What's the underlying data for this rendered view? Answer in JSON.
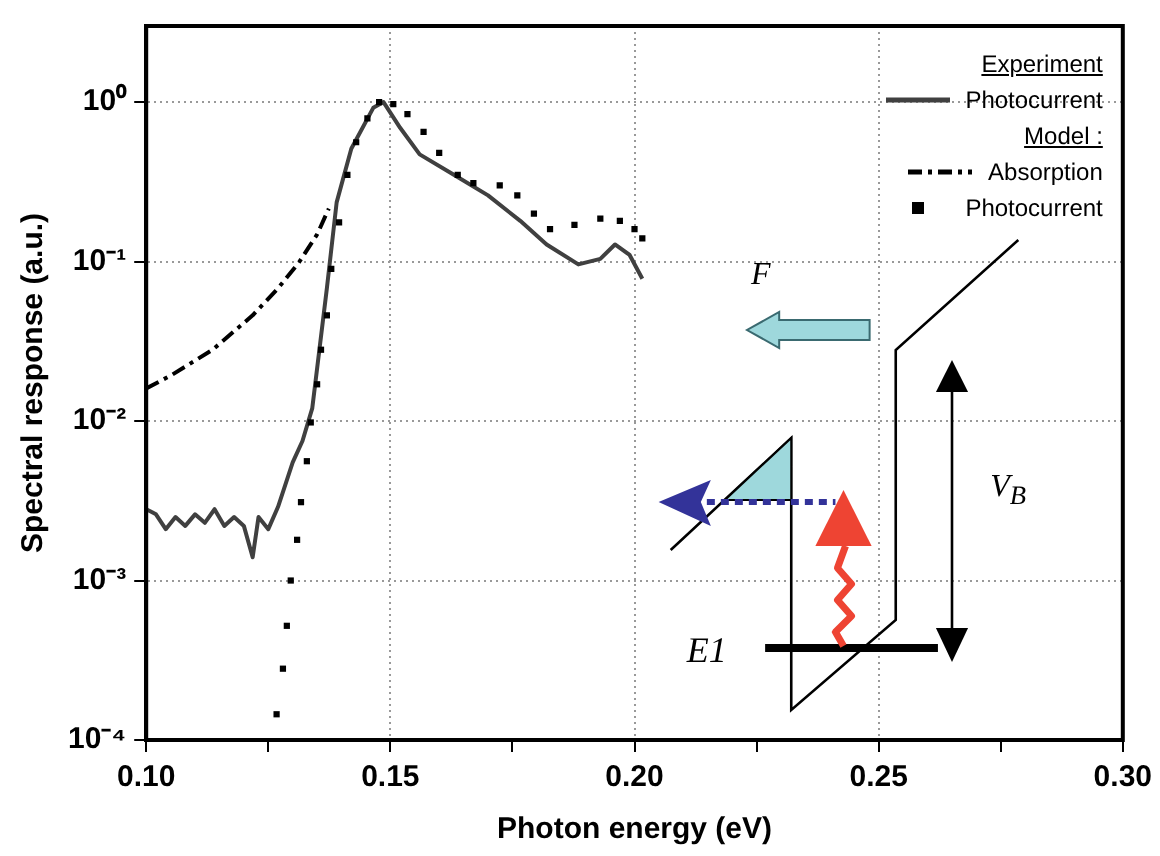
{
  "chart_data": {
    "type": "line",
    "xlabel": "Photon energy (eV)",
    "ylabel": "Spectral response (a.u.)",
    "xlim": [
      0.1,
      0.3
    ],
    "xticks": [
      {
        "value": 0.1,
        "label": "0.10"
      },
      {
        "value": 0.125,
        "label": null
      },
      {
        "value": 0.15,
        "label": "0.15"
      },
      {
        "value": 0.175,
        "label": null
      },
      {
        "value": 0.2,
        "label": "0.20"
      },
      {
        "value": 0.225,
        "label": null
      },
      {
        "value": 0.25,
        "label": "0.25"
      },
      {
        "value": 0.275,
        "label": null
      },
      {
        "value": 0.3,
        "label": "0.30"
      }
    ],
    "ylim": [
      0.0001,
      3
    ],
    "yticks": [
      {
        "value": 0.0001,
        "label": "10⁻⁴"
      },
      {
        "value": 0.001,
        "label": "10⁻³"
      },
      {
        "value": 0.01,
        "label": "10⁻²"
      },
      {
        "value": 0.1,
        "label": "10⁻¹"
      },
      {
        "value": 1,
        "label": "10⁰"
      }
    ],
    "log": "y",
    "grid": true,
    "legend": "top right",
    "annotations": [
      "Experiment",
      "Model :",
      "F",
      "V$_{B}$",
      "E1"
    ],
    "series": [
      {
        "name": "Photocurrent",
        "type": "line",
        "color": "#404040",
        "marker": "none",
        "line_style": "solid",
        "x": [
          0.1,
          0.102,
          0.104,
          0.106,
          0.108,
          0.11,
          0.112,
          0.114,
          0.116,
          0.118,
          0.12,
          0.1218,
          0.123,
          0.125,
          0.127,
          0.13,
          0.132,
          0.134,
          0.137,
          0.139,
          0.142,
          0.1465,
          0.1486,
          0.152,
          0.156,
          0.163,
          0.17,
          0.1766,
          0.182,
          0.1885,
          0.193,
          0.196,
          0.199,
          0.2016
        ],
        "values": [
          0.0028,
          0.0026,
          0.0021,
          0.0025,
          0.0022,
          0.0026,
          0.0023,
          0.0028,
          0.0022,
          0.0025,
          0.0022,
          0.0014,
          0.0025,
          0.0021,
          0.0029,
          0.0055,
          0.0075,
          0.012,
          0.068,
          0.235,
          0.51,
          0.92,
          1.0,
          0.69,
          0.47,
          0.35,
          0.26,
          0.18,
          0.128,
          0.096,
          0.104,
          0.128,
          0.11,
          0.078
        ]
      },
      {
        "name": "Absorption",
        "type": "line",
        "color": "#000000",
        "marker": "none",
        "line_style": "dashed",
        "x": [
          0.1,
          0.1053,
          0.1136,
          0.1218,
          0.127,
          0.1313,
          0.135,
          0.1374
        ],
        "values": [
          0.016,
          0.0195,
          0.028,
          0.046,
          0.068,
          0.099,
          0.148,
          0.215
        ]
      },
      {
        "name": "Photocurrent",
        "type": "scatter",
        "color": "#000000",
        "marker": "square",
        "x": [
          0.1267,
          0.128,
          0.1288,
          0.1296,
          0.1309,
          0.1317,
          0.1329,
          0.1337,
          0.135,
          0.1358,
          0.137,
          0.1379,
          0.1395,
          0.1412,
          0.143,
          0.1453,
          0.1477,
          0.1506,
          0.1535,
          0.1568,
          0.16,
          0.1638,
          0.167,
          0.1724,
          0.176,
          0.1794,
          0.1827,
          0.1877,
          0.193,
          0.197,
          0.2,
          0.2016
        ],
        "values": [
          0.000145,
          0.00028,
          0.00052,
          0.001,
          0.0018,
          0.0031,
          0.0056,
          0.0098,
          0.017,
          0.028,
          0.046,
          0.09,
          0.176,
          0.35,
          0.56,
          0.79,
          1.0,
          0.97,
          0.84,
          0.65,
          0.48,
          0.35,
          0.31,
          0.3,
          0.26,
          0.2,
          0.16,
          0.17,
          0.186,
          0.18,
          0.16,
          0.14
        ]
      }
    ]
  }
}
